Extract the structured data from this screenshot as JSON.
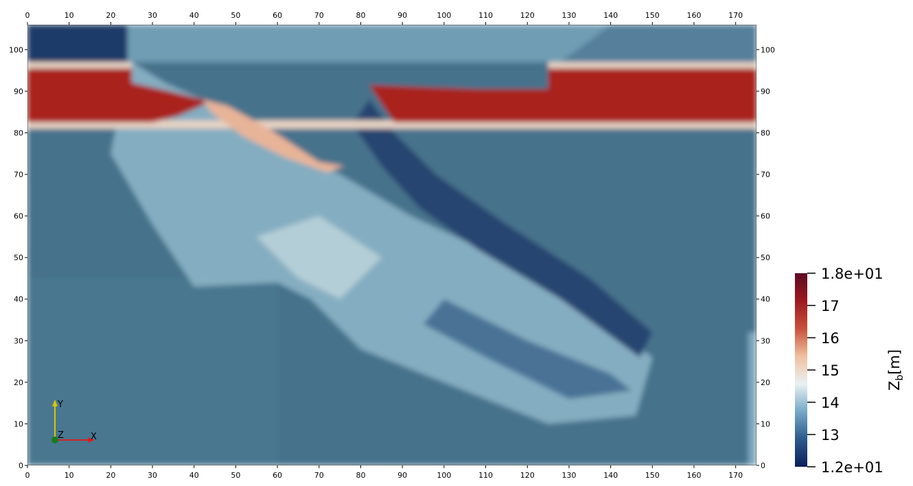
{
  "chart_data": {
    "type": "field",
    "xlim": [
      0,
      175
    ],
    "ylim": [
      0,
      106
    ],
    "xticks": [
      0,
      10,
      20,
      30,
      40,
      50,
      60,
      70,
      80,
      90,
      100,
      110,
      120,
      130,
      140,
      150,
      160,
      170
    ],
    "yticks": [
      0,
      10,
      20,
      30,
      40,
      50,
      60,
      70,
      80,
      90,
      100
    ],
    "colorbar": {
      "lim": [
        12,
        18
      ],
      "ticks": [
        {
          "value": 18,
          "label": "1.8e+01"
        },
        17,
        16,
        15,
        14,
        13,
        {
          "value": 12,
          "label": "1.2e+01"
        }
      ],
      "colormap": [
        "#0b1f5a",
        "#2c5a8c",
        "#75a9c8",
        "#eaf1f2",
        "#f0c09e",
        "#c8503a",
        "#9c1a1f",
        "#5c0a25"
      ],
      "label": {
        "symbol": "Z",
        "subscript": "b",
        "unit": "[m]"
      }
    },
    "orientation_axes": [
      "X",
      "Y",
      "Z"
    ]
  }
}
